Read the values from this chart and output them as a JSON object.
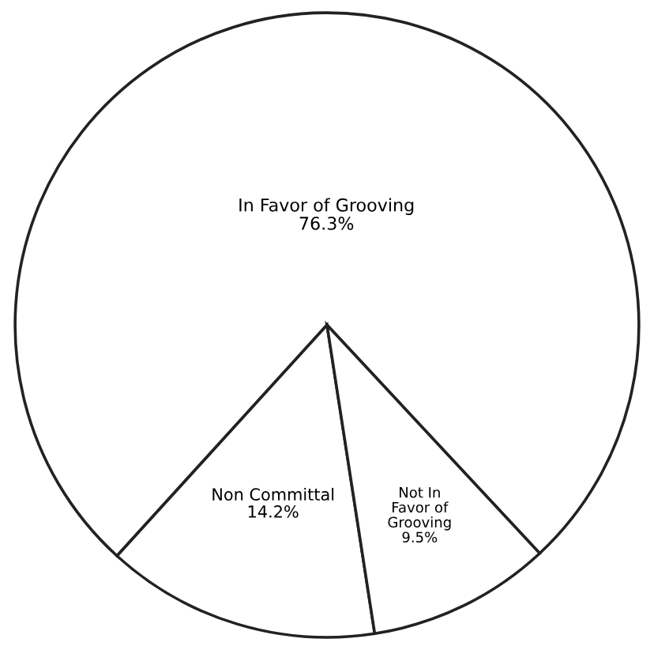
{
  "chart_data": {
    "type": "pie",
    "categories": [
      "In Favor of Grooving",
      "Non Committal",
      "Not In\nFavor of\nGrooving"
    ],
    "values": [
      76.3,
      14.2,
      9.5
    ],
    "colors": [
      "#ffffff",
      "#ffffff",
      "#ffffff"
    ],
    "value_labels": [
      "76.3%",
      "14.2%",
      "9.5%"
    ],
    "legend": false
  }
}
